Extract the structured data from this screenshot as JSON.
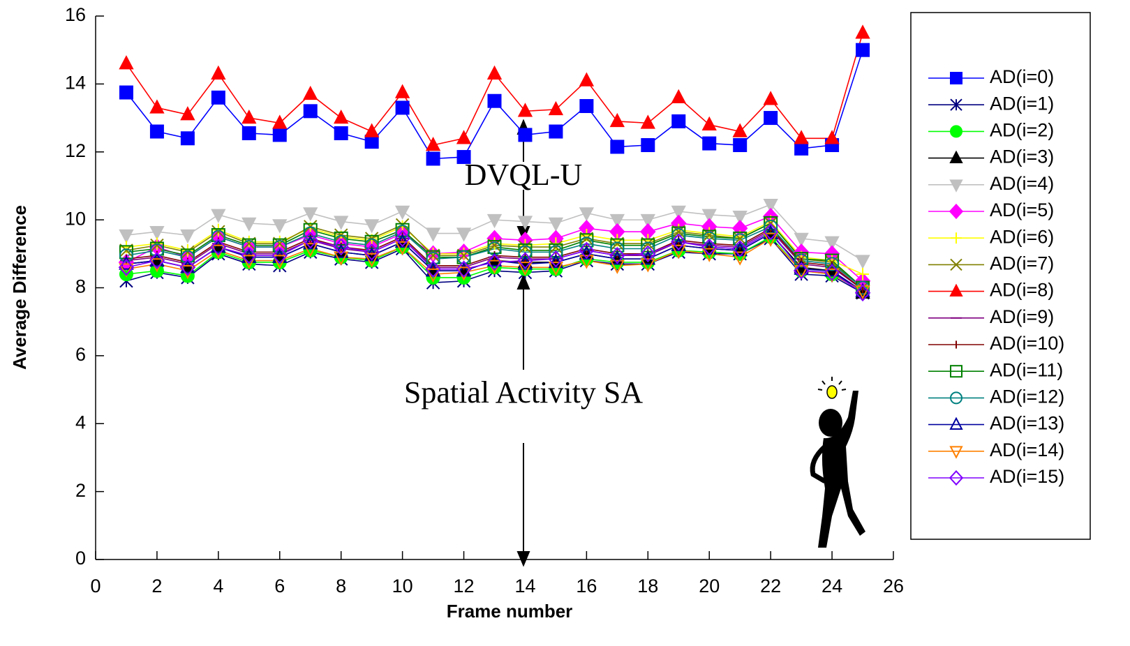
{
  "chart_data": {
    "type": "line",
    "x_label": "Frame number",
    "y_label": "Average Difference",
    "annotations": [
      "DVQL-U",
      "Spatial Activity SA"
    ],
    "x": [
      1,
      2,
      3,
      4,
      5,
      6,
      7,
      8,
      9,
      10,
      11,
      12,
      13,
      14,
      15,
      16,
      17,
      18,
      19,
      20,
      21,
      22,
      23,
      24,
      25
    ],
    "xlim": [
      0,
      26
    ],
    "xticks": [
      0,
      2,
      4,
      6,
      8,
      10,
      12,
      14,
      16,
      18,
      20,
      22,
      24,
      26
    ],
    "ylim": [
      0,
      16
    ],
    "yticks": [
      0,
      2,
      4,
      6,
      8,
      10,
      12,
      14,
      16
    ],
    "series": [
      {
        "name": "AD(i=0)",
        "color": "#0000ff",
        "marker": "square",
        "values": [
          13.75,
          12.6,
          12.4,
          13.6,
          12.55,
          12.5,
          13.2,
          12.55,
          12.3,
          13.3,
          11.8,
          11.85,
          13.5,
          12.5,
          12.6,
          13.35,
          12.15,
          12.2,
          12.9,
          12.25,
          12.2,
          13.0,
          12.1,
          12.2,
          15.0
        ]
      },
      {
        "name": "AD(i=1)",
        "color": "#000080",
        "marker": "asterisk",
        "values": [
          8.2,
          8.45,
          8.3,
          9.0,
          8.7,
          8.65,
          9.05,
          8.85,
          8.75,
          9.15,
          8.15,
          8.2,
          8.5,
          8.45,
          8.5,
          8.8,
          8.7,
          8.7,
          9.05,
          9.0,
          9.0,
          9.45,
          8.4,
          8.35,
          7.85
        ]
      },
      {
        "name": "AD(i=2)",
        "color": "#00ff00",
        "marker": "circle",
        "values": [
          8.4,
          8.5,
          8.35,
          9.05,
          8.75,
          8.75,
          9.1,
          8.9,
          8.8,
          9.2,
          8.3,
          8.3,
          8.6,
          8.55,
          8.55,
          8.85,
          8.75,
          8.75,
          9.1,
          9.05,
          9.0,
          9.5,
          8.5,
          8.4,
          7.9
        ]
      },
      {
        "name": "AD(i=3)",
        "color": "#000000",
        "marker": "triangle",
        "values": [
          8.7,
          8.8,
          8.6,
          9.2,
          8.9,
          8.9,
          9.3,
          9.05,
          8.95,
          9.35,
          8.5,
          8.5,
          8.8,
          8.75,
          8.75,
          9.0,
          8.85,
          8.85,
          9.25,
          9.15,
          9.1,
          9.6,
          8.6,
          8.5,
          7.85
        ]
      },
      {
        "name": "AD(i=4)",
        "color": "#c0c0c0",
        "marker": "triangle-down",
        "values": [
          9.55,
          9.65,
          9.55,
          10.15,
          9.9,
          9.85,
          10.2,
          9.95,
          9.85,
          10.25,
          9.6,
          9.6,
          10.0,
          9.95,
          9.9,
          10.2,
          10.0,
          10.0,
          10.25,
          10.15,
          10.1,
          10.45,
          9.45,
          9.35,
          8.8
        ]
      },
      {
        "name": "AD(i=5)",
        "color": "#ff00ff",
        "marker": "diamond",
        "values": [
          8.75,
          9.2,
          8.9,
          9.5,
          9.2,
          9.2,
          9.55,
          9.3,
          9.2,
          9.6,
          9.0,
          9.05,
          9.45,
          9.4,
          9.45,
          9.75,
          9.65,
          9.65,
          9.9,
          9.8,
          9.75,
          10.1,
          9.05,
          9.0,
          8.2
        ]
      },
      {
        "name": "AD(i=6)",
        "color": "#ffff00",
        "marker": "plus",
        "values": [
          9.2,
          9.3,
          9.1,
          9.7,
          9.35,
          9.35,
          9.75,
          9.5,
          9.4,
          9.8,
          9.0,
          9.0,
          9.3,
          9.25,
          9.3,
          9.55,
          9.4,
          9.4,
          9.7,
          9.6,
          9.5,
          9.95,
          8.9,
          8.8,
          8.4
        ]
      },
      {
        "name": "AD(i=7)",
        "color": "#808000",
        "marker": "cross",
        "values": [
          9.1,
          9.25,
          9.05,
          9.65,
          9.3,
          9.3,
          9.8,
          9.55,
          9.45,
          9.85,
          8.95,
          8.95,
          9.25,
          9.2,
          9.2,
          9.45,
          9.3,
          9.3,
          9.65,
          9.55,
          9.45,
          9.9,
          8.85,
          8.75,
          8.0
        ]
      },
      {
        "name": "AD(i=8)",
        "color": "#ff0000",
        "marker": "triangle",
        "values": [
          14.6,
          13.3,
          13.1,
          14.3,
          13.0,
          12.85,
          13.7,
          13.0,
          12.6,
          13.75,
          12.2,
          12.4,
          14.3,
          13.2,
          13.25,
          14.1,
          12.9,
          12.85,
          13.6,
          12.8,
          12.6,
          13.55,
          12.4,
          12.4,
          15.5
        ]
      },
      {
        "name": "AD(i=9)",
        "color": "#800080",
        "marker": "dash",
        "values": [
          8.8,
          8.9,
          8.7,
          9.3,
          9.0,
          9.0,
          9.4,
          9.15,
          9.05,
          9.45,
          8.6,
          8.6,
          8.9,
          8.85,
          8.85,
          9.1,
          8.95,
          8.95,
          9.35,
          9.25,
          9.2,
          9.7,
          8.7,
          8.6,
          7.95
        ]
      },
      {
        "name": "AD(i=10)",
        "color": "#800000",
        "marker": "bar",
        "values": [
          8.85,
          8.95,
          8.75,
          9.35,
          9.05,
          9.05,
          9.45,
          9.2,
          9.1,
          9.5,
          8.65,
          8.65,
          8.95,
          8.9,
          8.9,
          9.15,
          9.0,
          9.0,
          9.4,
          9.3,
          9.25,
          9.75,
          8.75,
          8.65,
          7.95
        ]
      },
      {
        "name": "AD(i=11)",
        "color": "#008000",
        "marker": "open-square",
        "values": [
          9.05,
          9.15,
          8.95,
          9.55,
          9.25,
          9.25,
          9.7,
          9.45,
          9.35,
          9.7,
          8.9,
          8.9,
          9.2,
          9.1,
          9.1,
          9.4,
          9.25,
          9.25,
          9.6,
          9.5,
          9.45,
          9.9,
          8.85,
          8.8,
          8.0
        ]
      },
      {
        "name": "AD(i=12)",
        "color": "#008080",
        "marker": "open-circle",
        "values": [
          8.95,
          9.1,
          8.9,
          9.5,
          9.2,
          9.2,
          9.6,
          9.35,
          9.25,
          9.65,
          8.85,
          8.9,
          9.15,
          9.05,
          9.05,
          9.3,
          9.15,
          9.15,
          9.55,
          9.45,
          9.4,
          9.8,
          8.8,
          8.7,
          8.0
        ]
      },
      {
        "name": "AD(i=13)",
        "color": "#0000a0",
        "marker": "open-triangle",
        "values": [
          8.7,
          8.8,
          8.6,
          9.2,
          8.9,
          8.9,
          9.3,
          9.05,
          8.95,
          9.35,
          8.5,
          8.5,
          8.8,
          8.7,
          8.75,
          9.0,
          8.85,
          8.85,
          9.25,
          9.15,
          9.1,
          9.6,
          8.55,
          8.5,
          7.9
        ]
      },
      {
        "name": "AD(i=14)",
        "color": "#ff8000",
        "marker": "open-triangle-down",
        "values": [
          8.55,
          8.7,
          8.5,
          9.1,
          8.8,
          8.8,
          9.15,
          8.9,
          8.85,
          9.2,
          8.4,
          8.45,
          8.65,
          8.6,
          8.6,
          8.8,
          8.65,
          8.7,
          9.1,
          9.0,
          8.9,
          9.45,
          8.5,
          8.4,
          7.9
        ]
      },
      {
        "name": "AD(i=15)",
        "color": "#8000ff",
        "marker": "open-diamond",
        "values": [
          8.6,
          8.8,
          8.6,
          9.2,
          8.95,
          8.95,
          9.4,
          9.2,
          9.05,
          9.45,
          8.55,
          8.55,
          8.75,
          8.8,
          8.85,
          9.1,
          8.95,
          9.0,
          9.35,
          9.2,
          9.15,
          9.65,
          8.5,
          8.45,
          7.85
        ]
      }
    ]
  }
}
